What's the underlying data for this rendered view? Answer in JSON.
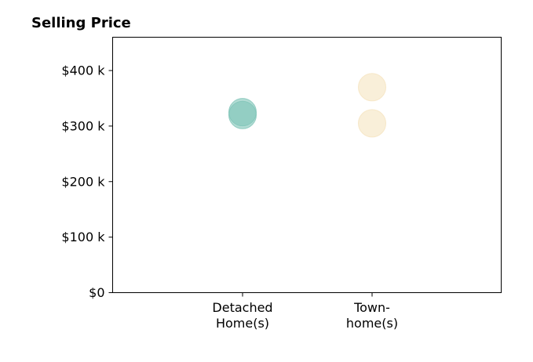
{
  "chart_data": {
    "type": "scatter",
    "title": "Selling Price",
    "xlabel": "",
    "ylabel": "",
    "categories": [
      [
        "Detached",
        "Home(s)"
      ],
      [
        "Town-",
        "home(s)"
      ]
    ],
    "ylim": [
      0,
      460000
    ],
    "y_ticks": [
      {
        "value": 0,
        "label": "$0"
      },
      {
        "value": 100000,
        "label": "$100 k"
      },
      {
        "value": 200000,
        "label": "$200 k"
      },
      {
        "value": 300000,
        "label": "$300 k"
      },
      {
        "value": 400000,
        "label": "$400 k"
      }
    ],
    "grid": false,
    "series": [
      {
        "color": "#7fc4b8",
        "points": [
          {
            "category": 0,
            "y": 325000
          },
          {
            "category": 0,
            "y": 320000
          }
        ]
      },
      {
        "color": "#f5e4bf",
        "points": [
          {
            "category": 1,
            "y": 370000
          },
          {
            "category": 1,
            "y": 305000
          }
        ]
      }
    ]
  }
}
